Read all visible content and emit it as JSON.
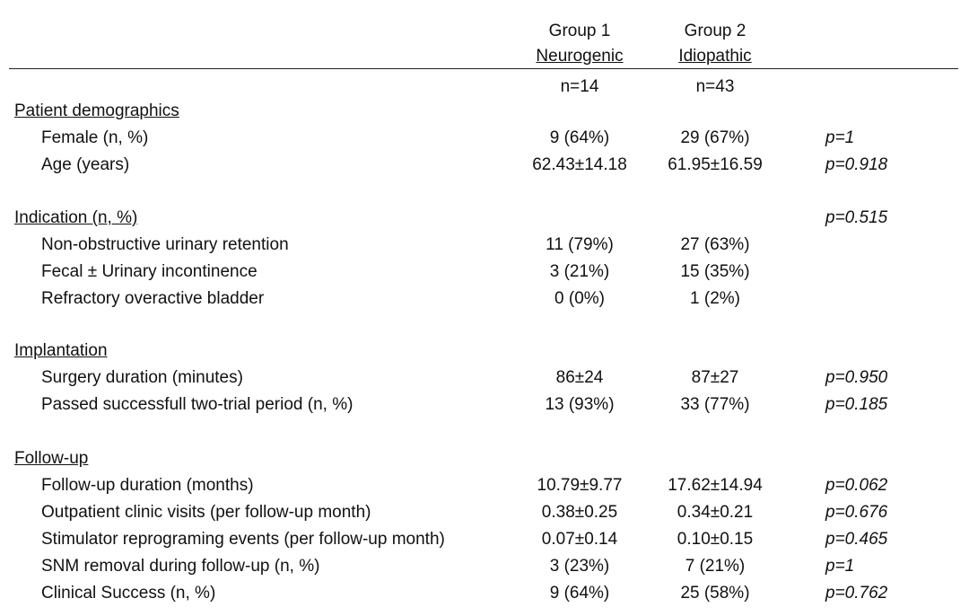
{
  "header": {
    "group1_title": "Group 1",
    "group1_subtitle": "Neurogenic",
    "group1_n": "n=14",
    "group2_title": "Group 2",
    "group2_subtitle": "Idiopathic",
    "group2_n": "n=43"
  },
  "sections": [
    {
      "title": "Patient demographics",
      "title_p": "",
      "rows": [
        {
          "label": "Female (n, %)",
          "g1": "9 (64%)",
          "g2": "29 (67%)",
          "p": "p=1"
        },
        {
          "label": "Age (years)",
          "g1": "62.43±14.18",
          "g2": "61.95±16.59",
          "p": "p=0.918"
        }
      ]
    },
    {
      "title": "Indication (n, %)",
      "title_p": "p=0.515",
      "rows": [
        {
          "label": "Non-obstructive urinary retention",
          "g1": "11 (79%)",
          "g2": "27 (63%)",
          "p": ""
        },
        {
          "label": "Fecal ± Urinary incontinence",
          "g1": "3 (21%)",
          "g2": "15 (35%)",
          "p": ""
        },
        {
          "label": "Refractory overactive bladder",
          "g1": "0 (0%)",
          "g2": "1 (2%)",
          "p": ""
        }
      ]
    },
    {
      "title": "Implantation",
      "title_p": "",
      "rows": [
        {
          "label": "Surgery duration (minutes)",
          "g1": "86±24",
          "g2": "87±27",
          "p": "p=0.950"
        },
        {
          "label": "Passed successfull two-trial period (n, %)",
          "g1": "13 (93%)",
          "g2": "33 (77%)",
          "p": "p=0.185"
        }
      ]
    },
    {
      "title": "Follow-up",
      "title_p": "",
      "rows": [
        {
          "label": "Follow-up duration (months)",
          "g1": "10.79±9.77",
          "g2": "17.62±14.94",
          "p": "p=0.062"
        },
        {
          "label": "Outpatient clinic visits (per follow-up month)",
          "g1": "0.38±0.25",
          "g2": "0.34±0.21",
          "p": "p=0.676"
        },
        {
          "label": "Stimulator reprograming events (per follow-up month)",
          "g1": "0.07±0.14",
          "g2": "0.10±0.15",
          "p": "p=0.465"
        },
        {
          "label": "SNM removal during follow-up (n, %)",
          "g1": "3 (23%)",
          "g2": "7 (21%)",
          "p": "p=1"
        },
        {
          "label": "Clinical Success (n, %)",
          "g1": "9 (64%)",
          "g2": "25 (58%)",
          "p": "p=0.762"
        }
      ]
    }
  ]
}
